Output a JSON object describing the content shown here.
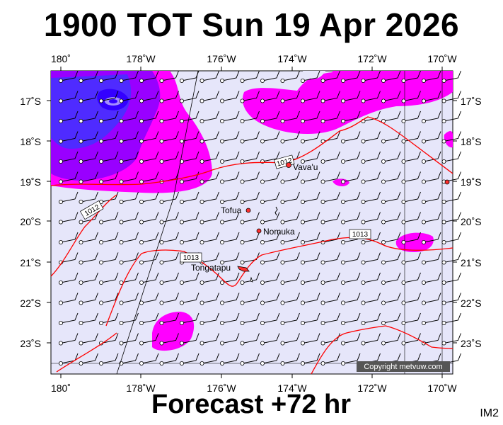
{
  "header": {
    "title": "1900 TOT Sun 19 Apr 2026"
  },
  "footer": {
    "subtitle": "Forecast +72 hr",
    "tag": "IM2"
  },
  "map": {
    "lon_labels": [
      "180˚",
      "178˚W",
      "176˚W",
      "174˚W",
      "172˚W",
      "170˚W"
    ],
    "lat_labels": [
      "17˚S",
      "18˚S",
      "19˚S",
      "20˚S",
      "21˚S",
      "22˚S",
      "23˚S"
    ],
    "places": [
      "Vava'u",
      "Tofua",
      "Nomuka",
      "Tongatapu"
    ],
    "isobars": [
      "1012",
      "1013",
      "1013",
      "1012"
    ],
    "copyright": "Copyright metvuw.com",
    "colors": {
      "background": "#e6e6fa",
      "isobar": "#ff0000",
      "rain_light": "#ff00ff",
      "rain_medium": "#9900ff",
      "rain_heavy": "#3300ff"
    }
  }
}
